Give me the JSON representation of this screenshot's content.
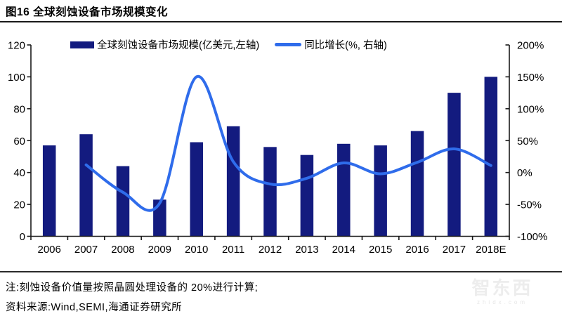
{
  "header": {
    "title": "图16 全球刻蚀设备市场规模变化"
  },
  "chart_data": {
    "type": "combo",
    "categories": [
      "2006",
      "2007",
      "2008",
      "2009",
      "2010",
      "2011",
      "2012",
      "2013",
      "2014",
      "2015",
      "2016",
      "2017",
      "2018E"
    ],
    "series": [
      {
        "name": "全球刻蚀设备市场规模(亿美元,左轴)",
        "type": "bar",
        "axis": "left",
        "color": "#131b7f",
        "values": [
          57,
          64,
          44,
          23,
          59,
          69,
          56,
          51,
          58,
          57,
          66,
          90,
          100
        ]
      },
      {
        "name": "同比增长(%, 右轴)",
        "type": "line",
        "axis": "right",
        "color": "#2f6ceb",
        "values": [
          null,
          12,
          -31,
          -48,
          150,
          17,
          -18,
          -9,
          15,
          -2,
          16,
          37,
          11
        ]
      }
    ],
    "left_axis": {
      "min": 0,
      "max": 120,
      "step": 20,
      "tick_labels": [
        "0",
        "20",
        "40",
        "60",
        "80",
        "100",
        "120"
      ]
    },
    "right_axis": {
      "min": -100,
      "max": 200,
      "step": 50,
      "tick_labels": [
        "-100%",
        "-50%",
        "0%",
        "50%",
        "100%",
        "150%",
        "200%"
      ]
    },
    "grid": false,
    "legend_position": "top",
    "axis_color": "#1a1a1a",
    "label_color": "#000000"
  },
  "footer": {
    "note": "注:刻蚀设备价值量按照晶圆处理设备的 20%进行计算;",
    "source": "资料来源:Wind,SEMI,海通证券研究所"
  },
  "watermark": {
    "text": "智东西",
    "subtext": "zhidx.com"
  }
}
